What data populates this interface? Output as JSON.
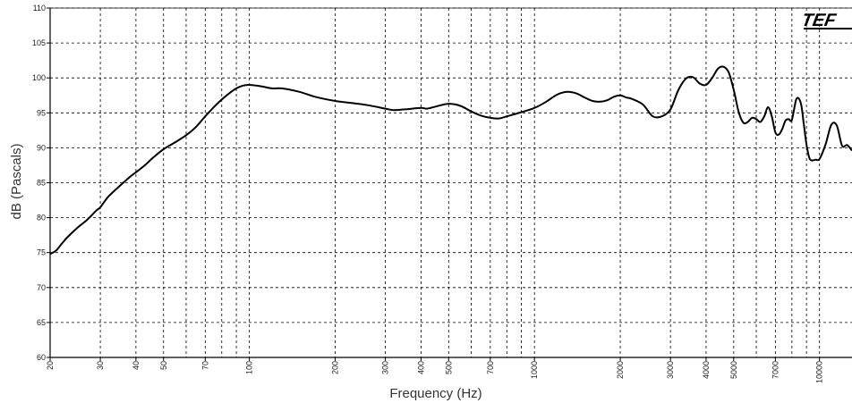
{
  "chart_data": {
    "type": "line",
    "title": "",
    "xlabel": "Frequency (Hz)",
    "ylabel": "dB (Pascals)",
    "x_scale": "log",
    "xlim": [
      20,
      13000
    ],
    "ylim": [
      60,
      110
    ],
    "grid": true,
    "x_ticks": [
      20,
      30,
      40,
      50,
      70,
      100,
      200,
      300,
      400,
      500,
      700,
      1000,
      2000,
      3000,
      4000,
      5000,
      7000,
      10000
    ],
    "x_tick_labels": [
      "20",
      "30",
      "40",
      "50",
      "70",
      "100",
      "200",
      "300",
      "400",
      "500",
      "700",
      "1000",
      "2000",
      "3000",
      "4000",
      "5000",
      "7000",
      "10000"
    ],
    "y_ticks": [
      60,
      65,
      70,
      75,
      80,
      85,
      90,
      95,
      100,
      105,
      110
    ],
    "y_tick_labels": [
      "60",
      "65",
      "70",
      "75",
      "80",
      "85",
      "90",
      "95",
      "100",
      "105",
      "110"
    ],
    "logo_text": "TEF",
    "series": [
      {
        "color": "#000000",
        "x": [
          20,
          21,
          22,
          23,
          25,
          27,
          29,
          30,
          32,
          35,
          38,
          40,
          43,
          46,
          50,
          55,
          60,
          65,
          70,
          75,
          80,
          85,
          90,
          95,
          100,
          110,
          120,
          130,
          150,
          170,
          200,
          230,
          260,
          300,
          320,
          350,
          400,
          420,
          450,
          500,
          550,
          600,
          650,
          700,
          750,
          800,
          850,
          900,
          1000,
          1100,
          1200,
          1300,
          1400,
          1500,
          1600,
          1700,
          1800,
          1900,
          2000,
          2100,
          2200,
          2400,
          2600,
          2800,
          3000,
          3200,
          3400,
          3600,
          3800,
          4000,
          4200,
          4400,
          4600,
          4800,
          5000,
          5200,
          5400,
          5600,
          5800,
          6000,
          6200,
          6400,
          6600,
          6800,
          7000,
          7200,
          7400,
          7600,
          7800,
          8000,
          8300,
          8600,
          8800,
          9000,
          9200,
          9400,
          9700,
          10000,
          10500,
          11000,
          11500,
          12000,
          12500,
          13000
        ],
        "y": [
          74.8,
          75.3,
          76.3,
          77.2,
          78.6,
          79.7,
          81.0,
          81.5,
          83.0,
          84.5,
          85.8,
          86.5,
          87.5,
          88.6,
          89.8,
          90.8,
          91.8,
          93.0,
          94.5,
          95.8,
          96.9,
          97.8,
          98.5,
          98.9,
          99.0,
          98.8,
          98.5,
          98.5,
          98.0,
          97.3,
          96.7,
          96.4,
          96.1,
          95.6,
          95.4,
          95.5,
          95.7,
          95.6,
          95.9,
          96.3,
          96.0,
          95.2,
          94.6,
          94.3,
          94.2,
          94.5,
          94.8,
          95.1,
          95.7,
          96.6,
          97.6,
          98.0,
          97.8,
          97.2,
          96.7,
          96.6,
          96.8,
          97.3,
          97.5,
          97.2,
          97.0,
          96.2,
          94.5,
          94.5,
          95.5,
          98.3,
          99.9,
          100.1,
          99.2,
          99.0,
          100.0,
          101.3,
          101.6,
          100.8,
          98.3,
          95.2,
          93.6,
          93.7,
          94.3,
          94.1,
          93.7,
          94.5,
          95.8,
          94.5,
          92.2,
          91.9,
          92.7,
          93.9,
          94.1,
          94.0,
          97.0,
          96.4,
          93.5,
          90.5,
          88.6,
          88.2,
          88.3,
          88.4,
          90.5,
          93.3,
          93.2,
          90.3,
          90.4,
          89.6
        ]
      }
    ]
  }
}
